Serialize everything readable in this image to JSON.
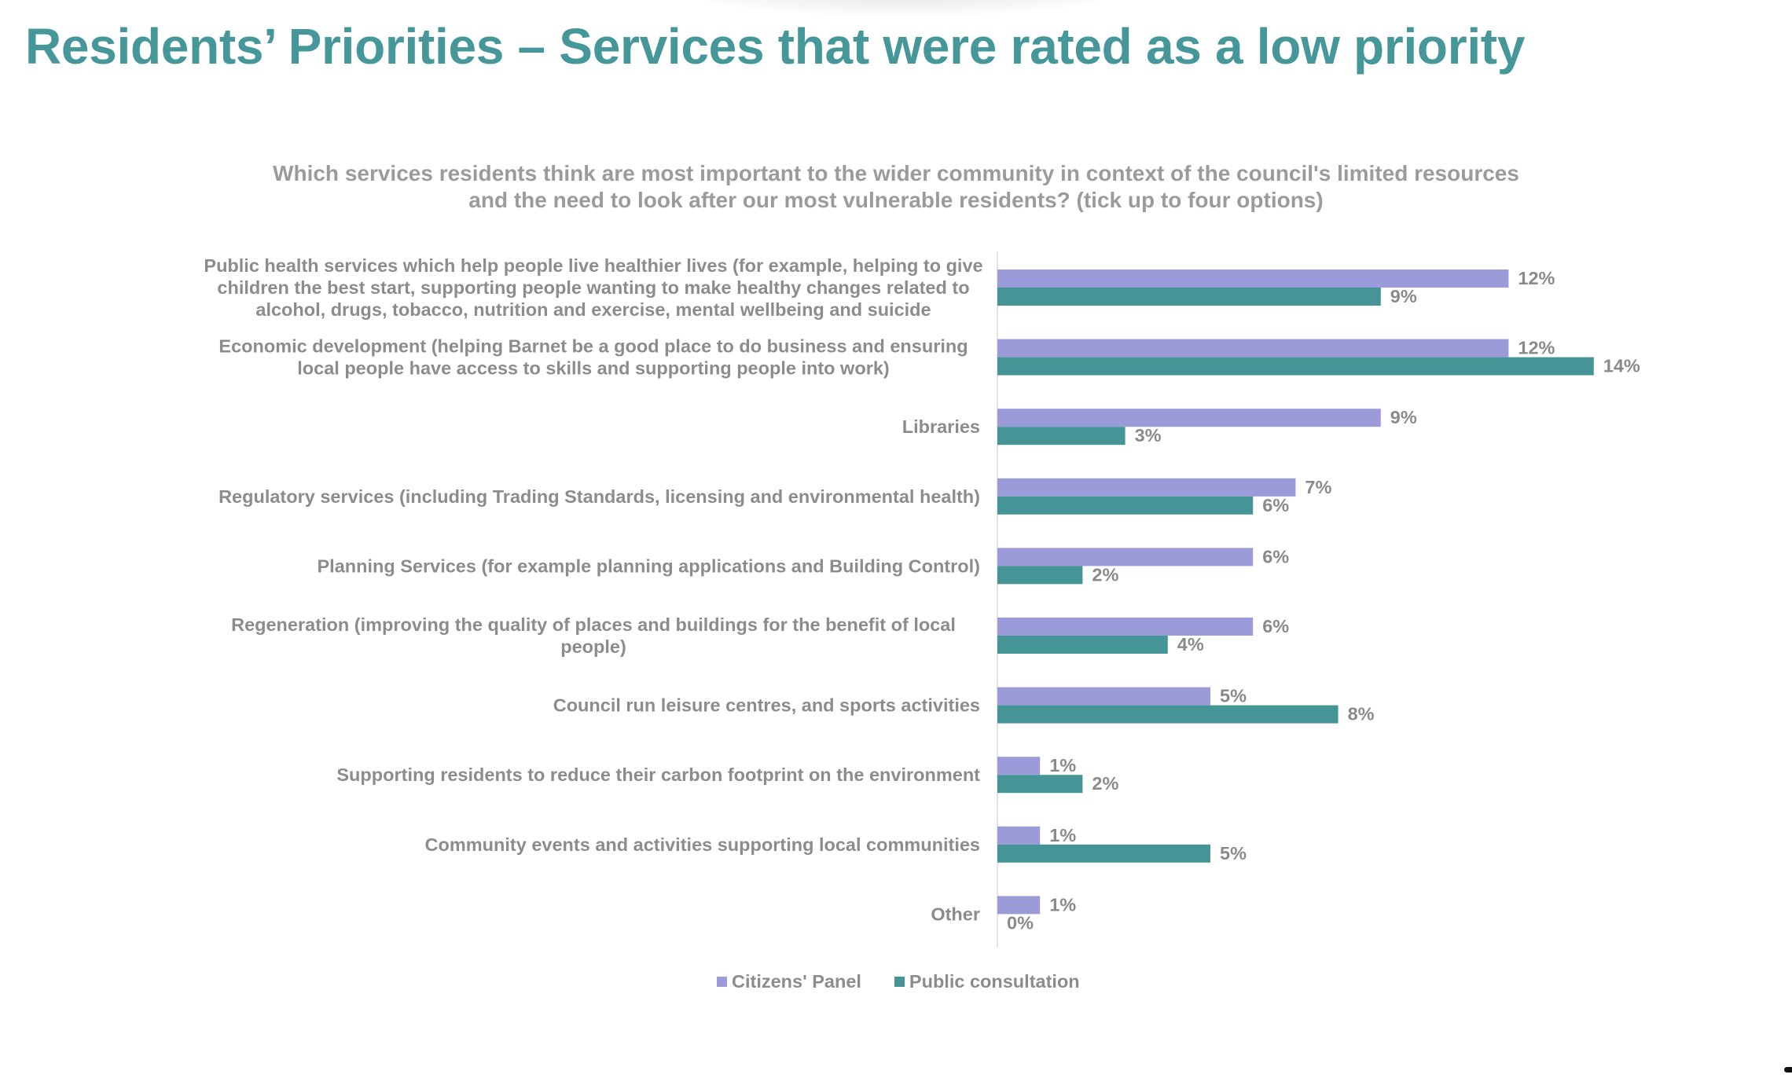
{
  "page": {
    "title": "Residents’ Priorities – Services that were rated as a low priority"
  },
  "chart_data": {
    "type": "bar",
    "orientation": "horizontal",
    "title": "Which services residents think are most important to the wider community in context of the council's limited resources and the need to look after our most vulnerable residents? (tick up to four options)",
    "title_lines": [
      "Which services residents think are most important to the wider community in context of the council's limited resources",
      "and the need to look after our most vulnerable residents? (tick up to four options)"
    ],
    "xlabel": "",
    "ylabel": "",
    "xlim": [
      0,
      15
    ],
    "grid": false,
    "legend_position": "bottom",
    "categories": [
      "Public health services which help people live healthier lives (for example, helping to give children the best start, supporting people wanting to make healthy changes related to alcohol, drugs, tobacco, nutrition and exercise, mental wellbeing and suicide",
      "Economic development (helping Barnet be a good place to do business and ensuring local people have access to skills and supporting people into work)",
      "Libraries",
      "Regulatory services (including Trading Standards,  licensing and environmental health)",
      "Planning Services  (for example planning applications and Building Control)",
      "Regeneration (improving the quality of places and buildings for the benefit of local people)",
      "Council run leisure centres, and sports activities",
      "Supporting residents to reduce their carbon footprint on the environment",
      "Community events and activities supporting local communities",
      "Other"
    ],
    "category_lines": [
      [
        "Public health services which help people live healthier lives (for example, helping to give",
        "children the best start, supporting people wanting to make healthy changes related to",
        "alcohol, drugs, tobacco, nutrition and exercise, mental wellbeing and suicide"
      ],
      [
        "Economic development (helping Barnet be a good place to do business and ensuring",
        "local people have access to skills and supporting people into work)"
      ],
      [
        "Libraries"
      ],
      [
        "Regulatory services (including Trading Standards,  licensing and environmental health)"
      ],
      [
        "Planning Services  (for example planning applications and Building Control)"
      ],
      [
        "Regeneration (improving the quality of places and buildings for the benefit of local",
        "people)"
      ],
      [
        "Council run leisure centres, and sports activities"
      ],
      [
        "Supporting residents to reduce their carbon footprint on the environment"
      ],
      [
        "Community events and activities supporting local communities"
      ],
      [
        "Other"
      ]
    ],
    "series": [
      {
        "name": "Citizens' Panel",
        "color": "#9b9bd9",
        "values": [
          12,
          12,
          9,
          7,
          6,
          6,
          5,
          1,
          1,
          1
        ],
        "labels": [
          "12%",
          "12%",
          "9%",
          "7%",
          "6%",
          "6%",
          "5%",
          "1%",
          "1%",
          "1%"
        ]
      },
      {
        "name": "Public consultation",
        "color": "#459597",
        "values": [
          9,
          14,
          3,
          6,
          2,
          4,
          8,
          2,
          5,
          0
        ],
        "labels": [
          "9%",
          "14%",
          "3%",
          "6%",
          "2%",
          "4%",
          "8%",
          "2%",
          "5%",
          "0%"
        ]
      }
    ]
  }
}
